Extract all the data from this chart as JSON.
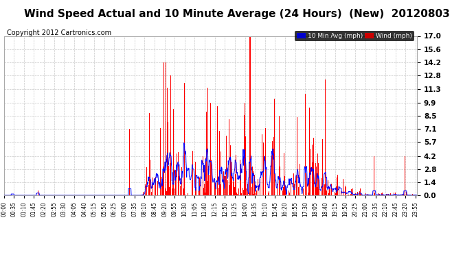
{
  "title": "Wind Speed Actual and 10 Minute Average (24 Hours)  (New)  20120803",
  "copyright": "Copyright 2012 Cartronics.com",
  "legend_blue_label": "10 Min Avg (mph)",
  "legend_red_label": "Wind (mph)",
  "yticks": [
    0.0,
    1.4,
    2.8,
    4.2,
    5.7,
    7.1,
    8.5,
    9.9,
    11.3,
    12.8,
    14.2,
    15.6,
    17.0
  ],
  "ymin": 0.0,
  "ymax": 17.0,
  "bg_color": "#ffffff",
  "plot_bg_color": "#ffffff",
  "grid_color": "#c8c8c8",
  "bar_color": "#ff0000",
  "line_color": "#0000ff",
  "title_fontsize": 11,
  "copyright_fontsize": 7,
  "tick_label_fontsize": 7.5,
  "xtick_fontsize": 5.5,
  "legend_blue_bg": "#0000cc",
  "legend_red_bg": "#cc0000"
}
